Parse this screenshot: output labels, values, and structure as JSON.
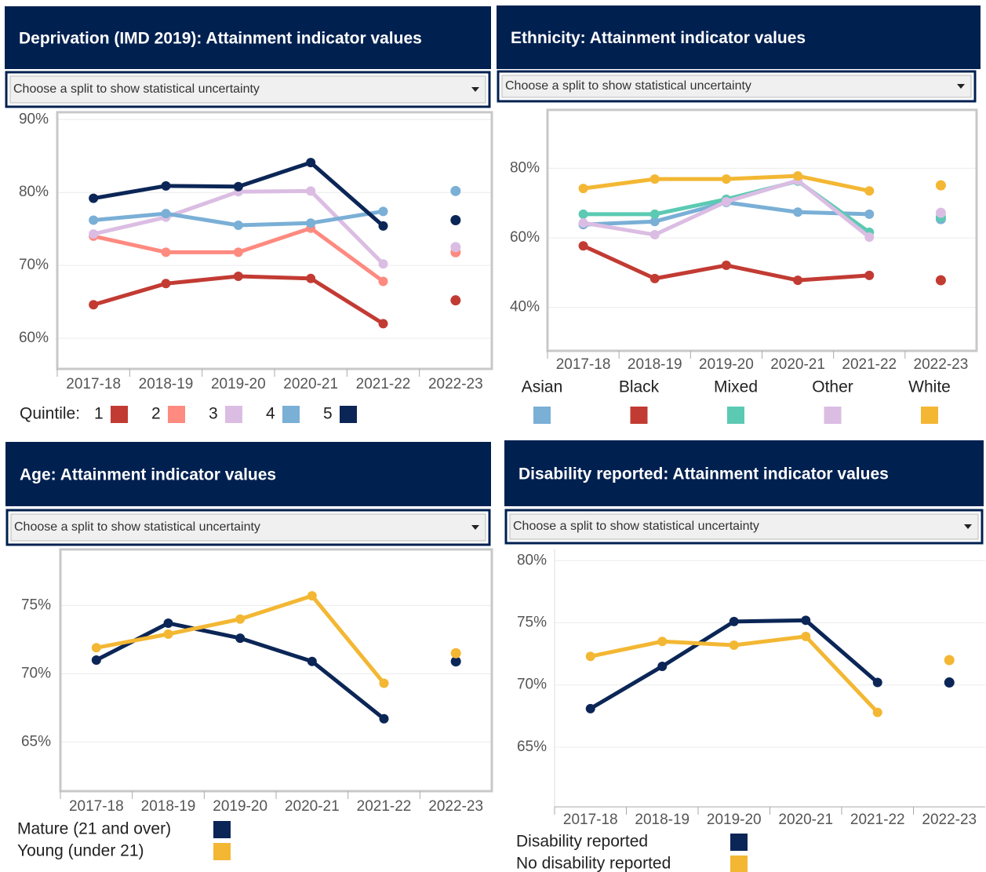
{
  "chart_data": [
    {
      "type": "line",
      "title": "Deprivation (IMD 2019): Attainment indicator values",
      "dropdown": "Choose a split to show statistical uncertainty",
      "categories": [
        "2017-18",
        "2018-19",
        "2019-20",
        "2020-21",
        "2021-22",
        "2022-23"
      ],
      "connect_last": false,
      "grid": true,
      "legend_title": "Quintile:",
      "ylim": [
        55.8,
        91
      ],
      "yticks": [
        {
          "value": 60,
          "label": "60%"
        },
        {
          "value": 70,
          "label": "70%"
        },
        {
          "value": 80,
          "label": "80%"
        },
        {
          "value": 90,
          "label": "90%"
        }
      ],
      "series": [
        {
          "name": "1",
          "color": "#c23b33",
          "values": [
            64.6,
            67.5,
            68.5,
            68.2,
            62.0,
            65.2
          ]
        },
        {
          "name": "2",
          "color": "#fe8a80",
          "values": [
            74.0,
            71.8,
            71.8,
            75.1,
            67.8,
            71.8
          ]
        },
        {
          "name": "3",
          "color": "#dbbde3",
          "values": [
            74.3,
            76.6,
            80.1,
            80.2,
            70.2,
            72.5
          ]
        },
        {
          "name": "4",
          "color": "#7aafd6",
          "values": [
            76.2,
            77.1,
            75.5,
            75.8,
            77.4,
            80.2
          ]
        },
        {
          "name": "5",
          "color": "#0b2656",
          "values": [
            79.2,
            80.9,
            80.8,
            84.1,
            75.4,
            76.2
          ]
        }
      ]
    },
    {
      "type": "line",
      "title": "Ethnicity: Attainment indicator values",
      "dropdown": "Choose a split to show statistical uncertainty",
      "categories": [
        "2017-18",
        "2018-19",
        "2019-20",
        "2020-21",
        "2021-22",
        "2022-23"
      ],
      "connect_last": false,
      "grid": true,
      "ylim": [
        27.5,
        96.8
      ],
      "yticks": [
        {
          "value": 40,
          "label": "40%"
        },
        {
          "value": 60,
          "label": "60%"
        },
        {
          "value": 80,
          "label": "80%"
        }
      ],
      "series": [
        {
          "name": "Asian",
          "color": "#7aafd6",
          "values": [
            63.8,
            64.7,
            70.2,
            67.4,
            66.8,
            65.4
          ]
        },
        {
          "name": "Black",
          "color": "#c23b33",
          "values": [
            57.7,
            48.3,
            52.1,
            47.8,
            49.2,
            47.8
          ]
        },
        {
          "name": "Mixed",
          "color": "#5ccab2",
          "values": [
            66.8,
            66.8,
            71.1,
            76.3,
            61.6,
            66.0
          ]
        },
        {
          "name": "Other",
          "color": "#dbbde3",
          "values": [
            64.3,
            60.9,
            70.4,
            76.5,
            60.2,
            67.2
          ]
        },
        {
          "name": "White",
          "color": "#f3b733",
          "values": [
            74.2,
            76.9,
            76.9,
            77.8,
            73.5,
            75.1
          ]
        }
      ]
    },
    {
      "type": "line",
      "title": "Age: Attainment indicator values",
      "dropdown": "Choose a split to show statistical uncertainty",
      "categories": [
        "2017-18",
        "2018-19",
        "2019-20",
        "2020-21",
        "2021-22",
        "2022-23"
      ],
      "connect_last": false,
      "grid": true,
      "ylim": [
        61.4,
        79.1
      ],
      "yticks": [
        {
          "value": 65,
          "label": "65%"
        },
        {
          "value": 70,
          "label": "70%"
        },
        {
          "value": 75,
          "label": "75%"
        }
      ],
      "series": [
        {
          "name": "Mature (21 and over)",
          "color": "#0b2656",
          "values": [
            71.0,
            73.7,
            72.6,
            70.9,
            66.7,
            70.9
          ]
        },
        {
          "name": "Young (under 21)",
          "color": "#f3b733",
          "values": [
            71.9,
            72.9,
            74.0,
            75.7,
            69.3,
            71.5
          ]
        }
      ]
    },
    {
      "type": "line",
      "title": "Disability reported: Attainment indicator values",
      "dropdown": "Choose a split to show statistical uncertainty",
      "categories": [
        "2017-18",
        "2018-19",
        "2019-20",
        "2020-21",
        "2021-22",
        "2022-23"
      ],
      "connect_last": false,
      "grid": true,
      "ylim": [
        60.2,
        80.9
      ],
      "yticks": [
        {
          "value": 65,
          "label": "65%"
        },
        {
          "value": 70,
          "label": "70%"
        },
        {
          "value": 75,
          "label": "75%"
        },
        {
          "value": 80,
          "label": "80%"
        }
      ],
      "series": [
        {
          "name": "Disability reported",
          "color": "#0b2656",
          "values": [
            68.1,
            71.5,
            75.1,
            75.2,
            70.2,
            70.2
          ]
        },
        {
          "name": "No disability reported",
          "color": "#f3b733",
          "values": [
            72.3,
            73.5,
            73.2,
            73.9,
            67.8,
            72.0
          ]
        }
      ]
    }
  ]
}
